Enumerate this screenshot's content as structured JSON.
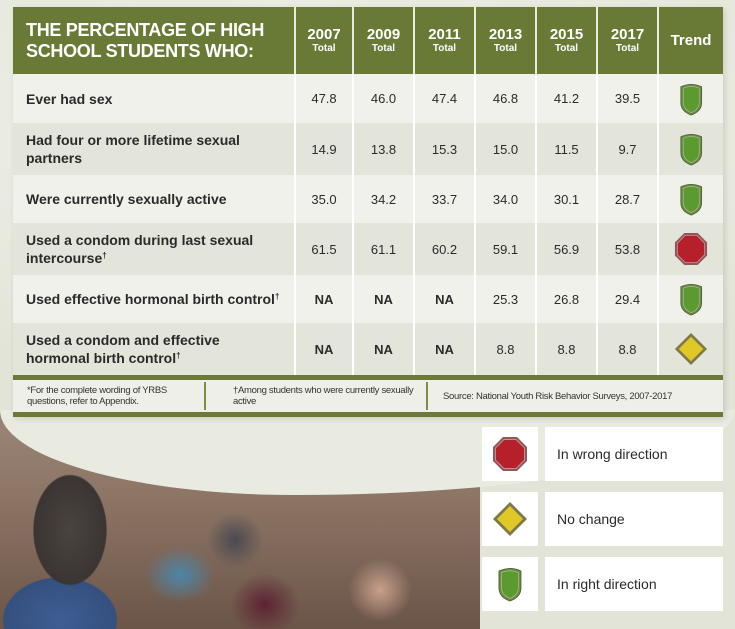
{
  "chart_data": {
    "type": "table",
    "title": "THE PERCENTAGE OF HIGH SCHOOL STUDENTS WHO:",
    "columns": [
      {
        "year": "2007",
        "sub": "Total"
      },
      {
        "year": "2009",
        "sub": "Total"
      },
      {
        "year": "2011",
        "sub": "Total"
      },
      {
        "year": "2013",
        "sub": "Total"
      },
      {
        "year": "2015",
        "sub": "Total"
      },
      {
        "year": "2017",
        "sub": "Total"
      }
    ],
    "trend_header": "Trend",
    "rows": [
      {
        "label": "Ever had sex",
        "dagger": "",
        "values": [
          "47.8",
          "46.0",
          "47.4",
          "46.8",
          "41.2",
          "39.5"
        ],
        "trend": "right"
      },
      {
        "label": "Had four or more lifetime sexual partners",
        "dagger": "",
        "values": [
          "14.9",
          "13.8",
          "15.3",
          "15.0",
          "11.5",
          "9.7"
        ],
        "trend": "right"
      },
      {
        "label": "Were currently sexually active",
        "dagger": "",
        "values": [
          "35.0",
          "34.2",
          "33.7",
          "34.0",
          "30.1",
          "28.7"
        ],
        "trend": "right"
      },
      {
        "label": "Used a condom during last sexual intercourse",
        "dagger": "†",
        "values": [
          "61.5",
          "61.1",
          "60.2",
          "59.1",
          "56.9",
          "53.8"
        ],
        "trend": "wrong"
      },
      {
        "label": "Used effective hormonal birth control",
        "dagger": "†",
        "values": [
          "NA",
          "NA",
          "NA",
          "25.3",
          "26.8",
          "29.4"
        ],
        "trend": "right"
      },
      {
        "label": "Used a condom and effective hormonal birth control",
        "dagger": "†",
        "values": [
          "NA",
          "NA",
          "NA",
          "8.8",
          "8.8",
          "8.8"
        ],
        "trend": "no-change"
      }
    ],
    "footnotes": [
      "*For the complete wording of YRBS questions, refer to Appendix.",
      "†Among students who were currently sexually active",
      "Source: National Youth Risk Behavior Surveys, 2007-2017"
    ],
    "legend": [
      {
        "key": "wrong",
        "label": "In wrong direction",
        "icon": "stop-octagon-icon"
      },
      {
        "key": "no-change",
        "label": "No change",
        "icon": "yellow-diamond-icon"
      },
      {
        "key": "right",
        "label": "In right direction",
        "icon": "green-shield-icon"
      }
    ]
  },
  "colors": {
    "header_green": "#697a37",
    "wrong": "#b5202a",
    "no_change": "#e0c826",
    "right": "#5a9a2e"
  }
}
